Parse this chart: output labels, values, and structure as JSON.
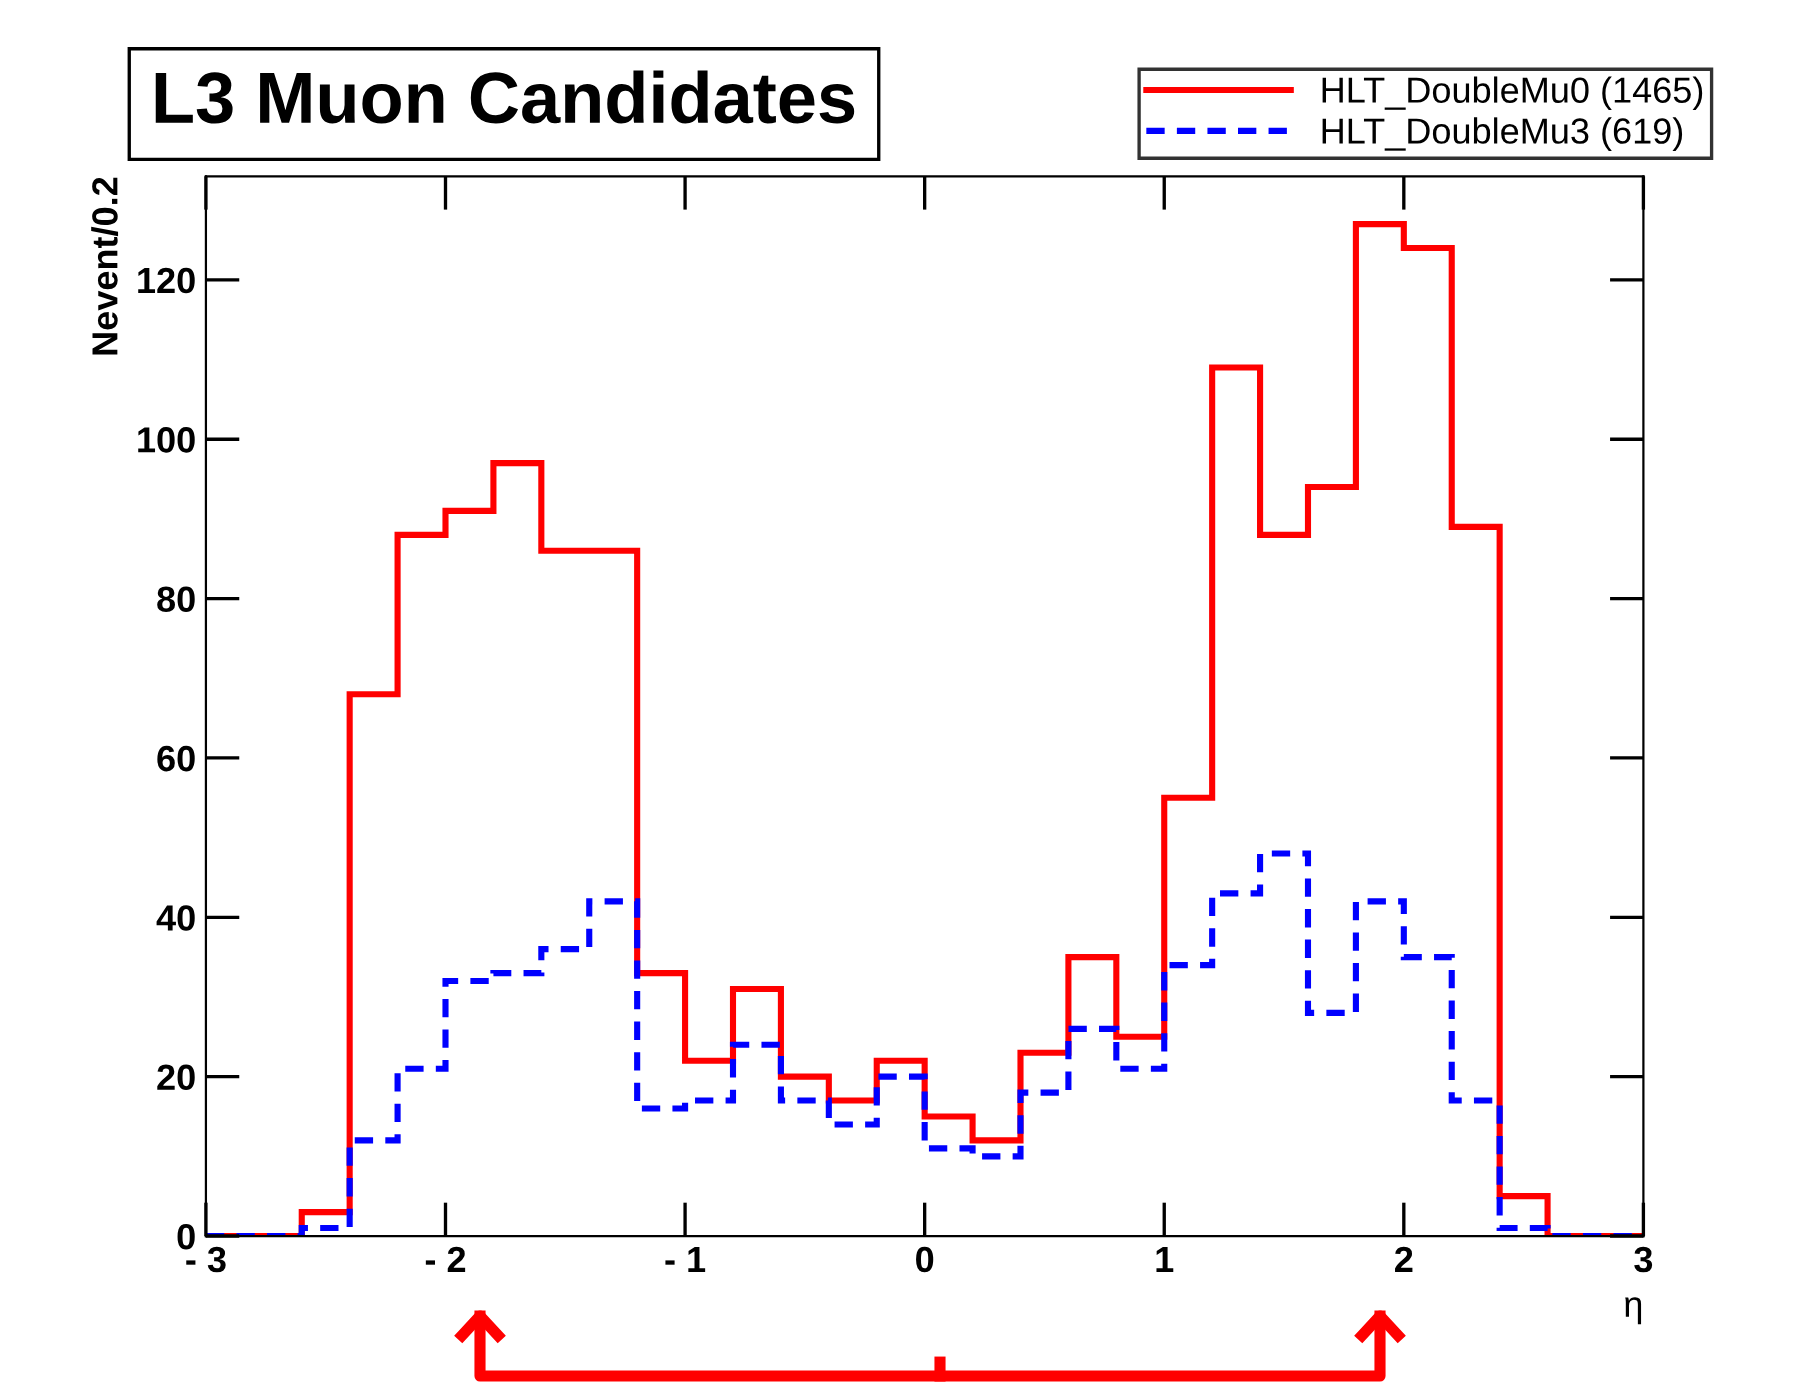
{
  "chart_data": {
    "type": "histogram",
    "title": "L3 Muon Candidates",
    "xlabel": "η",
    "ylabel": "Nevent/0.2",
    "bins": [
      -3.0,
      -2.8,
      -2.6,
      -2.4,
      -2.2,
      -2.0,
      -1.8,
      -1.6,
      -1.4,
      -1.2,
      -1.0,
      -0.8,
      -0.6,
      -0.4,
      -0.2,
      0.0,
      0.2,
      0.4,
      0.6,
      0.8,
      1.0,
      1.2,
      1.4,
      1.6,
      1.8,
      2.0,
      2.2,
      2.4,
      2.6,
      2.8,
      3.0
    ],
    "series": [
      {
        "name": "HLT_DoubleMu0 (1465)",
        "color": "#ff0000",
        "line_style": "solid",
        "values": [
          0,
          0,
          3,
          68,
          88,
          91,
          97,
          86,
          86,
          33,
          22,
          31,
          20,
          17,
          22,
          15,
          12,
          23,
          35,
          25,
          55,
          109,
          88,
          94,
          127,
          124,
          89,
          5,
          0,
          0
        ]
      },
      {
        "name": "HLT_DoubleMu3 (619)",
        "color": "#0000ff",
        "line_style": "dashed",
        "values": [
          0,
          0,
          1,
          12,
          21,
          32,
          33,
          36,
          42,
          16,
          17,
          24,
          17,
          14,
          20,
          11,
          10,
          18,
          26,
          21,
          34,
          43,
          48,
          28,
          42,
          35,
          17,
          1,
          0,
          0
        ]
      }
    ],
    "xlim": [
      -3,
      3
    ],
    "xticks": [
      {
        "value": -3,
        "label": "- 3"
      },
      {
        "value": -2,
        "label": "- 2"
      },
      {
        "value": -1,
        "label": "- 1"
      },
      0,
      1,
      2,
      3
    ],
    "ylim": [
      0,
      133
    ],
    "yticks": [
      0,
      20,
      40,
      60,
      80,
      100,
      120
    ],
    "grid": false,
    "legend": "top right"
  }
}
